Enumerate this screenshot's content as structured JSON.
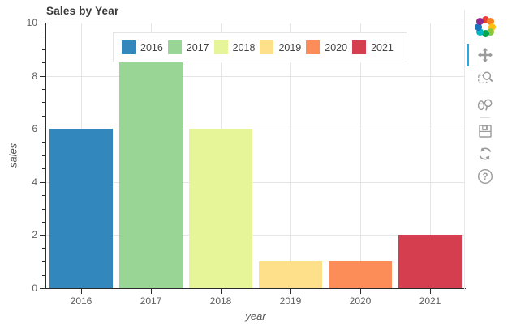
{
  "chart_data": {
    "type": "bar",
    "title": "Sales by Year",
    "categories": [
      "2016",
      "2017",
      "2018",
      "2019",
      "2020",
      "2021"
    ],
    "values": [
      6,
      8.5,
      6,
      1,
      1,
      2
    ],
    "bar_colors": [
      "#3288bd",
      "#99d594",
      "#e6f598",
      "#fee08b",
      "#fc8d59",
      "#d53e4f"
    ],
    "xlabel": "year",
    "ylabel": "sales",
    "ylim": [
      0,
      10
    ],
    "y_ticks": [
      0,
      2,
      4,
      6,
      8,
      10
    ],
    "y_minor_tick_step": 0.5,
    "bar_width_fraction": 0.9,
    "grid": true,
    "legend": {
      "orientation": "horizontal",
      "position": "top-center",
      "entries": [
        "2016",
        "2017",
        "2018",
        "2019",
        "2020",
        "2021"
      ]
    }
  },
  "style_colors": {
    "grid": "#e5e5e5",
    "axis": "#2b2b2b",
    "tick_label": "#5f5f5f",
    "title": "#3a3a3a",
    "legend_border": "#e5e5e5",
    "toolbar_icon": "#9b9b9b",
    "active_tool": "#26aae1"
  },
  "toolbar": {
    "logo": "bokeh-logo",
    "logo_colors": [
      "#e93e3a",
      "#f6821f",
      "#fdc010",
      "#8cc63f",
      "#00a651",
      "#00b7c3",
      "#1b75bc",
      "#92278f"
    ],
    "help_glyph": "?",
    "tools": [
      {
        "name": "pan",
        "icon": "pan-icon",
        "active": true
      },
      {
        "name": "box-zoom",
        "icon": "box-zoom-icon",
        "active": false
      },
      {
        "name": "wheel-zoom",
        "icon": "wheel-zoom-icon",
        "active": false
      },
      {
        "name": "save",
        "icon": "save-icon",
        "active": false
      },
      {
        "name": "reset",
        "icon": "reset-icon",
        "active": false
      },
      {
        "name": "help",
        "icon": "help-icon",
        "active": false
      }
    ]
  }
}
